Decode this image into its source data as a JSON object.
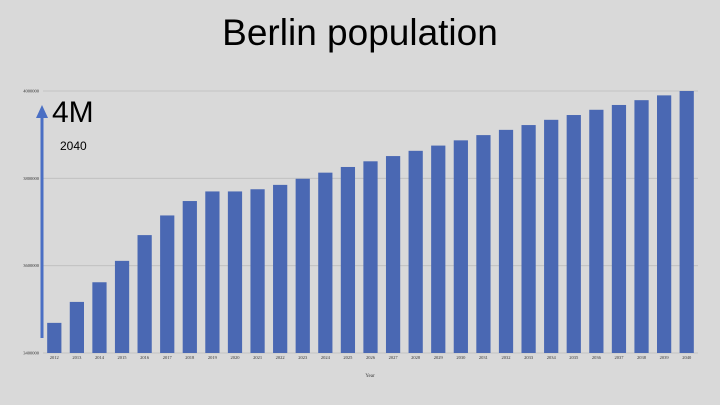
{
  "slide": {
    "title": "Berlin population",
    "callout_value": "4M",
    "callout_year": "2040"
  },
  "colors": {
    "background": "#d9d9d9",
    "bar": "#4a68b3",
    "arrow": "#4a6fc4",
    "grid": "#bdbdbd"
  },
  "chart_data": {
    "type": "bar",
    "xlabel": "Year",
    "ylabel": "",
    "ylim": [
      3400000,
      4000000
    ],
    "yticks": [
      3400000,
      3600000,
      3800000,
      4000000
    ],
    "ytick_labels": [
      "3400000",
      "3600000",
      "3800000",
      "4000000"
    ],
    "grid": true,
    "categories": [
      "2012",
      "2013",
      "2014",
      "2015",
      "2016",
      "2017",
      "2018",
      "2019",
      "2020",
      "2021",
      "2022",
      "2023",
      "2024",
      "2025",
      "2026",
      "2027",
      "2028",
      "2029",
      "2030",
      "2031",
      "2032",
      "2033",
      "2034",
      "2035",
      "2036",
      "2037",
      "2038",
      "2039",
      "2040"
    ],
    "values": [
      3469000,
      3517000,
      3562000,
      3611000,
      3670000,
      3715000,
      3748000,
      3770000,
      3770000,
      3775000,
      3785000,
      3799000,
      3813000,
      3826000,
      3839000,
      3851000,
      3863000,
      3875000,
      3887000,
      3899000,
      3911000,
      3922000,
      3934000,
      3945000,
      3957000,
      3968000,
      3979000,
      3990000,
      4000000
    ]
  }
}
